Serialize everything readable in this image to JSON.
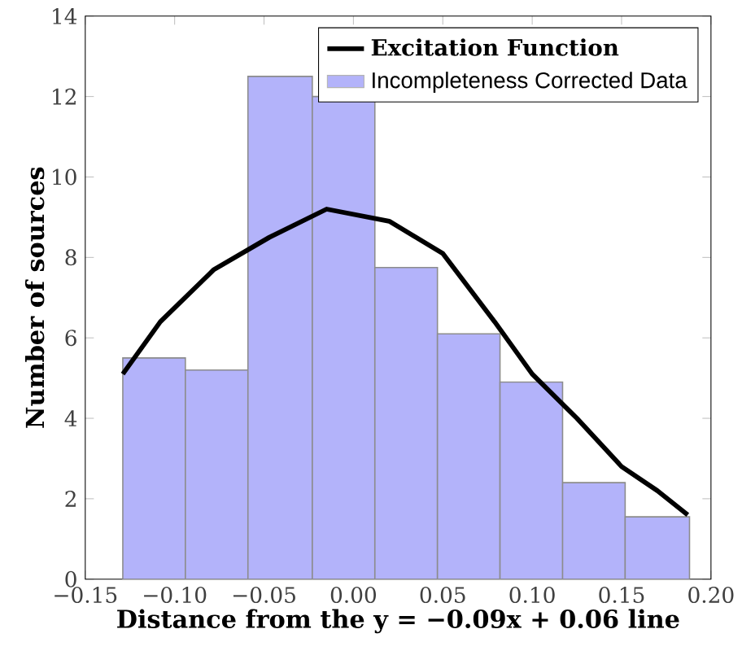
{
  "chart_data": {
    "type": "histogram",
    "xlabel": "Distance from the y = −0.09x + 0.06 line",
    "ylabel": "Number of sources",
    "bins": [
      -0.129,
      -0.094,
      -0.059,
      -0.023,
      0.012,
      0.047,
      0.082,
      0.117,
      0.152,
      0.188
    ],
    "series": [
      {
        "name": "Excitation Function",
        "type": "line",
        "color": "#000000",
        "x": [
          -0.129,
          -0.108,
          -0.078,
          -0.047,
          -0.015,
          0.02,
          0.05,
          0.079,
          0.1,
          0.125,
          0.15,
          0.17,
          0.187
        ],
        "values": [
          5.1,
          6.4,
          7.7,
          8.5,
          9.2,
          8.9,
          8.1,
          6.4,
          5.1,
          4.0,
          2.8,
          2.2,
          1.6
        ]
      },
      {
        "name": "Incompleteness Corrected Data",
        "color": "#b3b3fa",
        "values": [
          5.5,
          5.2,
          12.5,
          12.0,
          7.75,
          6.1,
          4.9,
          2.4,
          1.55
        ]
      }
    ],
    "xlim": [
      -0.15,
      0.2
    ],
    "xticks": [
      {
        "value": -0.15,
        "label": "−0.15"
      },
      {
        "value": -0.1,
        "label": "−0.10"
      },
      {
        "value": -0.05,
        "label": "−0.05"
      },
      {
        "value": 0,
        "label": "0.00"
      },
      {
        "value": 0.05,
        "label": "0.05"
      },
      {
        "value": 0.1,
        "label": "0.10"
      },
      {
        "value": 0.15,
        "label": "0.15"
      },
      {
        "value": 0.2,
        "label": "0.20"
      }
    ],
    "ylim": [
      0,
      14
    ],
    "yticks": [
      0,
      2,
      4,
      6,
      8,
      10,
      12,
      14
    ],
    "grid": false,
    "legend": "top right"
  }
}
